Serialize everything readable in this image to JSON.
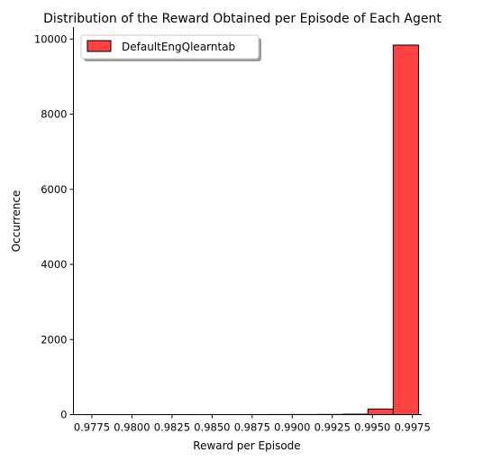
{
  "chart_data": {
    "type": "bar",
    "title": "Distribution of the Reward Obtained per Episode of Each Agent",
    "xlabel": "Reward per Episode",
    "ylabel": "Occurrence",
    "xlim": [
      0.97635,
      0.99805
    ],
    "ylim": [
      0,
      10320
    ],
    "x_ticks": [
      0.9775,
      0.98,
      0.9825,
      0.985,
      0.9875,
      0.99,
      0.9925,
      0.995,
      0.9975
    ],
    "x_tick_labels": [
      "0.9775",
      "0.9800",
      "0.9825",
      "0.9850",
      "0.9875",
      "0.9900",
      "0.9925",
      "0.9950",
      "0.9975"
    ],
    "y_ticks": [
      0,
      2000,
      4000,
      6000,
      8000,
      10000
    ],
    "y_tick_labels": [
      "0",
      "2000",
      "4000",
      "6000",
      "8000",
      "10000"
    ],
    "bin_edges": [
      0.97734,
      0.97892,
      0.9805,
      0.98208,
      0.98366,
      0.98524,
      0.98682,
      0.9884,
      0.98998,
      0.99156,
      0.99314,
      0.99472,
      0.9963,
      0.99788
    ],
    "series": [
      {
        "name": "DefaultEngQlearntab",
        "values": [
          1,
          0,
          0,
          1,
          0,
          1,
          1,
          2,
          3,
          5,
          12,
          150,
          9840
        ],
        "color": "#ff4242",
        "edge_color": "#000000"
      }
    ],
    "legend_position": "top-left",
    "grid": false
  }
}
